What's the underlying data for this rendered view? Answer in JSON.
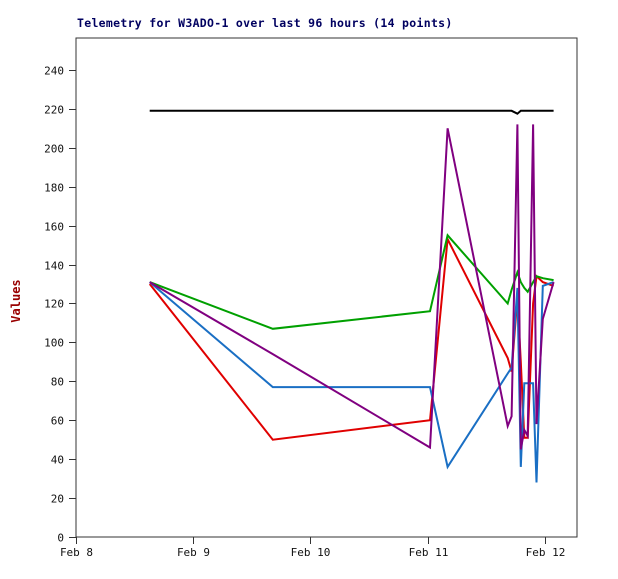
{
  "chart_data": {
    "type": "line",
    "title": "Telemetry for W3ADO-1 over last 96 hours (14 points)",
    "ylabel": "Values",
    "xlabel": "",
    "grid": false,
    "legend": "none",
    "points_per_series": 14,
    "title_color": "#000060",
    "ylabel_color": "#990000",
    "axis_color": "#333333",
    "x_range_hours": [
      0,
      102.6
    ],
    "y_range": [
      0,
      256.4
    ],
    "x_ticks": {
      "hours": [
        0,
        24,
        48,
        72,
        96
      ],
      "labels": [
        "Feb 8",
        "Feb 9",
        "Feb 10",
        "Feb 11",
        "Feb 12"
      ]
    },
    "y_ticks": [
      0,
      20,
      40,
      60,
      80,
      100,
      120,
      140,
      160,
      180,
      200,
      220,
      240
    ],
    "x_hours": [
      15.1,
      40.3,
      72.5,
      76.1,
      88.4,
      89.2,
      90.4,
      91.1,
      91.8,
      92.5,
      93.6,
      94.3,
      95.6,
      97.8
    ],
    "series": [
      {
        "name": "red",
        "color": "#e00000",
        "values": [
          130,
          50,
          60,
          153,
          92,
          85,
          123,
          90,
          51,
          51,
          120,
          134,
          131,
          129
        ]
      },
      {
        "name": "green",
        "color": "#00a000",
        "values": [
          131,
          107,
          116,
          155,
          120,
          127,
          136,
          131,
          128,
          126,
          131,
          134,
          133,
          132
        ]
      },
      {
        "name": "blue",
        "color": "#1a6fc4",
        "values": [
          131,
          77,
          77,
          36,
          84,
          87,
          128,
          36,
          79,
          79,
          79,
          28,
          129,
          131
        ]
      },
      {
        "name": "purple",
        "color": "#800080",
        "values": [
          131,
          94,
          46,
          210,
          57,
          62,
          212,
          45,
          55,
          52,
          212,
          58,
          112,
          131
        ]
      },
      {
        "name": "black-limit",
        "color": "#000000",
        "values": [
          219,
          219,
          219,
          219,
          219,
          219,
          217.5,
          219,
          219,
          219,
          219,
          219,
          219,
          219
        ]
      }
    ]
  }
}
